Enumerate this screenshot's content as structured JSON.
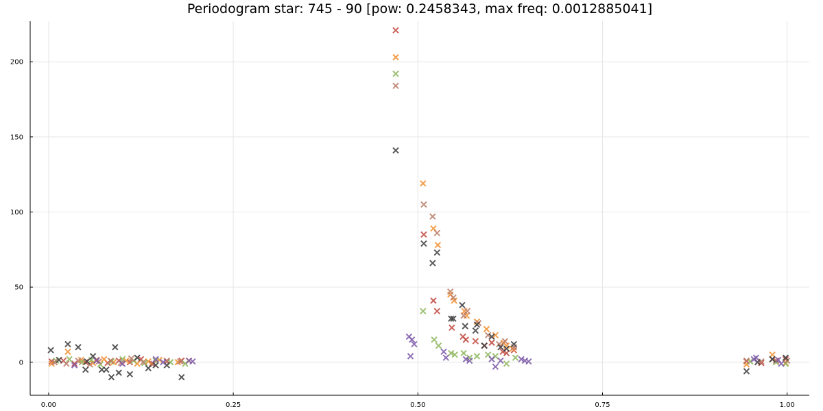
{
  "chart_data": {
    "type": "scatter",
    "title": "Periodogram star: 745 - 90 [pow: 0.2458343, max freq: 0.0012885041]",
    "xlabel": "",
    "ylabel": "",
    "xlim": [
      -0.025,
      1.03
    ],
    "ylim": [
      -22,
      227
    ],
    "xticks": [
      "0.00",
      "0.25",
      "0.50",
      "0.75",
      "1.00"
    ],
    "yticks": [
      "0",
      "50",
      "100",
      "150",
      "200"
    ],
    "grid": true,
    "legend": "none",
    "marker": "x",
    "series": [
      {
        "color": "#c0463d",
        "points": [
          [
            0.004,
            0.5
          ],
          [
            0.02,
            1.0
          ],
          [
            0.035,
            -1.0
          ],
          [
            0.05,
            0.0
          ],
          [
            0.065,
            1.5
          ],
          [
            0.08,
            -0.5
          ],
          [
            0.095,
            1.0
          ],
          [
            0.11,
            0.0
          ],
          [
            0.125,
            2.0
          ],
          [
            0.14,
            -1.0
          ],
          [
            0.16,
            0.5
          ],
          [
            0.18,
            1.0
          ],
          [
            0.47,
            221
          ],
          [
            0.508,
            85
          ],
          [
            0.521,
            41
          ],
          [
            0.526,
            34
          ],
          [
            0.546,
            23
          ],
          [
            0.561,
            17
          ],
          [
            0.565,
            15
          ],
          [
            0.578,
            14
          ],
          [
            0.59,
            11
          ],
          [
            0.6,
            13
          ],
          [
            0.615,
            7
          ],
          [
            0.62,
            6
          ],
          [
            0.63,
            8
          ],
          [
            0.945,
            0.5
          ],
          [
            0.965,
            -0.5
          ],
          [
            0.985,
            1.0
          ],
          [
            0.998,
            2.0
          ]
        ]
      },
      {
        "color": "#f28e2b",
        "points": [
          [
            0.004,
            -1.0
          ],
          [
            0.026,
            7
          ],
          [
            0.044,
            1.5
          ],
          [
            0.06,
            -0.5
          ],
          [
            0.075,
            2.0
          ],
          [
            0.088,
            0.0
          ],
          [
            0.105,
            1.0
          ],
          [
            0.12,
            -1.0
          ],
          [
            0.135,
            0.5
          ],
          [
            0.15,
            1.5
          ],
          [
            0.175,
            0.0
          ],
          [
            0.19,
            1.0
          ],
          [
            0.47,
            203
          ],
          [
            0.507,
            119
          ],
          [
            0.521,
            89
          ],
          [
            0.527,
            78
          ],
          [
            0.544,
            45
          ],
          [
            0.549,
            41
          ],
          [
            0.563,
            34
          ],
          [
            0.566,
            31
          ],
          [
            0.58,
            27
          ],
          [
            0.593,
            22
          ],
          [
            0.605,
            18
          ],
          [
            0.616,
            13
          ],
          [
            0.62,
            11
          ],
          [
            0.628,
            9
          ],
          [
            0.945,
            -1.5
          ],
          [
            0.98,
            5
          ],
          [
            0.998,
            -0.5
          ]
        ]
      },
      {
        "color": "#8cb55a",
        "points": [
          [
            0.01,
            1.0
          ],
          [
            0.028,
            2.0
          ],
          [
            0.045,
            0.0
          ],
          [
            0.058,
            1.5
          ],
          [
            0.07,
            -1.5
          ],
          [
            0.085,
            0.5
          ],
          [
            0.1,
            2.0
          ],
          [
            0.115,
            1.0
          ],
          [
            0.13,
            -0.5
          ],
          [
            0.145,
            1.0
          ],
          [
            0.165,
            0.0
          ],
          [
            0.185,
            -1.0
          ],
          [
            0.47,
            192
          ],
          [
            0.507,
            34
          ],
          [
            0.522,
            15
          ],
          [
            0.528,
            11
          ],
          [
            0.545,
            6
          ],
          [
            0.55,
            5
          ],
          [
            0.562,
            6
          ],
          [
            0.57,
            3
          ],
          [
            0.58,
            4
          ],
          [
            0.595,
            5
          ],
          [
            0.605,
            4
          ],
          [
            0.62,
            -1
          ],
          [
            0.632,
            3
          ],
          [
            0.95,
            0.5
          ],
          [
            0.985,
            0.0
          ],
          [
            0.998,
            -1.0
          ]
        ]
      },
      {
        "color": "#b97a66",
        "points": [
          [
            0.008,
            0.0
          ],
          [
            0.024,
            -1.0
          ],
          [
            0.04,
            1.0
          ],
          [
            0.056,
            -1.5
          ],
          [
            0.068,
            0.5
          ],
          [
            0.084,
            1.0
          ],
          [
            0.098,
            -0.5
          ],
          [
            0.112,
            2.5
          ],
          [
            0.128,
            0.0
          ],
          [
            0.142,
            -1.0
          ],
          [
            0.16,
            1.0
          ],
          [
            0.178,
            0.5
          ],
          [
            0.47,
            184
          ],
          [
            0.508,
            105
          ],
          [
            0.52,
            97
          ],
          [
            0.526,
            86
          ],
          [
            0.544,
            47
          ],
          [
            0.548,
            43
          ],
          [
            0.562,
            31
          ],
          [
            0.567,
            34
          ],
          [
            0.582,
            26
          ],
          [
            0.595,
            18
          ],
          [
            0.61,
            12
          ],
          [
            0.618,
            14
          ],
          [
            0.63,
            10
          ],
          [
            0.945,
            1.0
          ],
          [
            0.965,
            0.5
          ],
          [
            0.98,
            2.0
          ],
          [
            1.0,
            1.0
          ]
        ]
      },
      {
        "color": "#3a3a3a",
        "points": [
          [
            0.003,
            8
          ],
          [
            0.014,
            1.5
          ],
          [
            0.026,
            12
          ],
          [
            0.04,
            10
          ],
          [
            0.05,
            -5
          ],
          [
            0.052,
            0.5
          ],
          [
            0.06,
            4
          ],
          [
            0.072,
            -5
          ],
          [
            0.078,
            -5
          ],
          [
            0.085,
            -10
          ],
          [
            0.09,
            10
          ],
          [
            0.095,
            -7
          ],
          [
            0.11,
            -8
          ],
          [
            0.12,
            3
          ],
          [
            0.135,
            -4
          ],
          [
            0.145,
            -2
          ],
          [
            0.16,
            -2
          ],
          [
            0.18,
            -10
          ],
          [
            0.47,
            141
          ],
          [
            0.508,
            79
          ],
          [
            0.52,
            66
          ],
          [
            0.526,
            73
          ],
          [
            0.545,
            29
          ],
          [
            0.548,
            29
          ],
          [
            0.56,
            38
          ],
          [
            0.564,
            24
          ],
          [
            0.578,
            21
          ],
          [
            0.58,
            25
          ],
          [
            0.59,
            11
          ],
          [
            0.6,
            17
          ],
          [
            0.612,
            10
          ],
          [
            0.62,
            9
          ],
          [
            0.63,
            12
          ],
          [
            0.945,
            -6
          ],
          [
            0.96,
            0.0
          ],
          [
            0.98,
            2.0
          ],
          [
            0.998,
            3.0
          ]
        ]
      },
      {
        "color": "#7b58a8",
        "points": [
          [
            0.035,
            -2.0
          ],
          [
            0.065,
            1.0
          ],
          [
            0.1,
            -1.0
          ],
          [
            0.145,
            2.0
          ],
          [
            0.155,
            0.0
          ],
          [
            0.19,
            1.0
          ],
          [
            0.195,
            0.5
          ],
          [
            0.488,
            17
          ],
          [
            0.49,
            4
          ],
          [
            0.492,
            15
          ],
          [
            0.495,
            12
          ],
          [
            0.535,
            7
          ],
          [
            0.538,
            3
          ],
          [
            0.565,
            2
          ],
          [
            0.57,
            1
          ],
          [
            0.6,
            2
          ],
          [
            0.605,
            -3
          ],
          [
            0.612,
            1
          ],
          [
            0.64,
            2
          ],
          [
            0.645,
            1
          ],
          [
            0.65,
            0.5
          ],
          [
            0.955,
            2.0
          ],
          [
            0.958,
            3.0
          ],
          [
            0.988,
            1.5
          ],
          [
            0.992,
            -1.0
          ]
        ]
      }
    ]
  }
}
